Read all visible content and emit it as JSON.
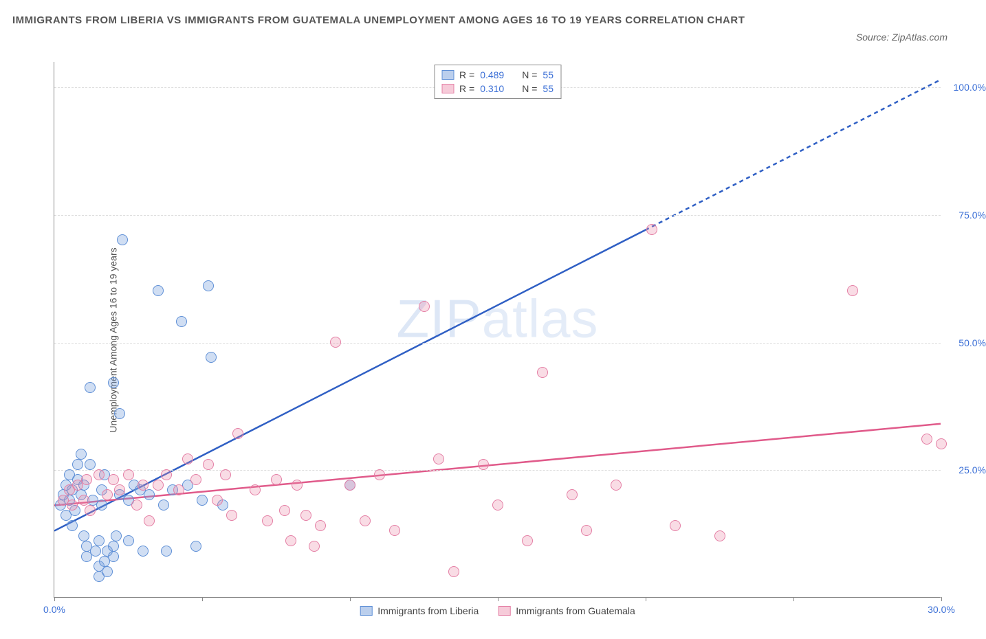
{
  "title": "IMMIGRANTS FROM LIBERIA VS IMMIGRANTS FROM GUATEMALA UNEMPLOYMENT AMONG AGES 16 TO 19 YEARS CORRELATION CHART",
  "source": "Source: ZipAtlas.com",
  "watermark_main": "ZIP",
  "watermark_sub": "atlas",
  "chart": {
    "type": "scatter",
    "ylabel": "Unemployment Among Ages 16 to 19 years",
    "xlim": [
      0,
      30
    ],
    "ylim": [
      0,
      105
    ],
    "xticks": [
      0,
      5,
      10,
      15,
      20,
      25,
      30
    ],
    "xtick_labels": {
      "0": "0.0%",
      "30": "30.0%"
    },
    "yticks": [
      25,
      50,
      75,
      100
    ],
    "ytick_labels": [
      "25.0%",
      "50.0%",
      "75.0%",
      "100.0%"
    ],
    "grid_color": "#dddddd",
    "background_color": "#ffffff",
    "legend_top": [
      {
        "swatch": "a",
        "r_label": "R =",
        "r": "0.489",
        "n_label": "N =",
        "n": "55"
      },
      {
        "swatch": "b",
        "r_label": "R =",
        "r": "0.310",
        "n_label": "N =",
        "n": "55"
      }
    ],
    "legend_bottom": [
      {
        "swatch": "a",
        "label": "Immigrants from Liberia"
      },
      {
        "swatch": "b",
        "label": "Immigrants from Guatemala"
      }
    ],
    "series": [
      {
        "name": "Immigrants from Liberia",
        "key": "a",
        "color_fill": "rgba(120,160,220,0.35)",
        "color_stroke": "#5e8fd6",
        "trend": {
          "x1": 0,
          "y1": 13,
          "x2": 20,
          "y2": 72,
          "x3": 30,
          "y3": 101.5,
          "dashed_after_x": 20,
          "color": "#2f5fc4",
          "width": 2.5
        },
        "points": [
          [
            0.2,
            18
          ],
          [
            0.3,
            20
          ],
          [
            0.4,
            22
          ],
          [
            0.4,
            16
          ],
          [
            0.5,
            19
          ],
          [
            0.5,
            24
          ],
          [
            0.6,
            21
          ],
          [
            0.6,
            14
          ],
          [
            0.7,
            17
          ],
          [
            0.8,
            23
          ],
          [
            0.8,
            26
          ],
          [
            0.9,
            28
          ],
          [
            0.9,
            20
          ],
          [
            1.0,
            22
          ],
          [
            1.0,
            12
          ],
          [
            1.1,
            10
          ],
          [
            1.1,
            8
          ],
          [
            1.2,
            26
          ],
          [
            1.2,
            41
          ],
          [
            1.3,
            19
          ],
          [
            1.4,
            9
          ],
          [
            1.5,
            11
          ],
          [
            1.5,
            6
          ],
          [
            1.5,
            4
          ],
          [
            1.6,
            21
          ],
          [
            1.6,
            18
          ],
          [
            1.7,
            24
          ],
          [
            1.7,
            7
          ],
          [
            1.8,
            9
          ],
          [
            1.8,
            5
          ],
          [
            2.0,
            42
          ],
          [
            2.0,
            10
          ],
          [
            2.0,
            8
          ],
          [
            2.1,
            12
          ],
          [
            2.2,
            20
          ],
          [
            2.2,
            36
          ],
          [
            2.3,
            70
          ],
          [
            2.5,
            11
          ],
          [
            2.5,
            19
          ],
          [
            2.7,
            22
          ],
          [
            2.9,
            21
          ],
          [
            3.0,
            9
          ],
          [
            3.2,
            20
          ],
          [
            3.5,
            60
          ],
          [
            3.7,
            18
          ],
          [
            3.8,
            9
          ],
          [
            4.0,
            21
          ],
          [
            4.3,
            54
          ],
          [
            4.5,
            22
          ],
          [
            4.8,
            10
          ],
          [
            5.0,
            19
          ],
          [
            5.2,
            61
          ],
          [
            5.3,
            47
          ],
          [
            5.7,
            18
          ],
          [
            10.0,
            22
          ]
        ]
      },
      {
        "name": "Immigrants from Guatemala",
        "key": "b",
        "color_fill": "rgba(235,140,170,0.30)",
        "color_stroke": "#e47fa5",
        "trend": {
          "x1": 0,
          "y1": 18,
          "x2": 30,
          "y2": 34,
          "color": "#e05a8a",
          "width": 2.5
        },
        "points": [
          [
            0.3,
            19
          ],
          [
            0.5,
            21
          ],
          [
            0.6,
            18
          ],
          [
            0.8,
            22
          ],
          [
            1.0,
            19
          ],
          [
            1.1,
            23
          ],
          [
            1.2,
            17
          ],
          [
            1.5,
            24
          ],
          [
            1.8,
            20
          ],
          [
            2.0,
            23
          ],
          [
            2.2,
            21
          ],
          [
            2.5,
            24
          ],
          [
            2.8,
            18
          ],
          [
            3.0,
            22
          ],
          [
            3.2,
            15
          ],
          [
            3.5,
            22
          ],
          [
            3.8,
            24
          ],
          [
            4.2,
            21
          ],
          [
            4.5,
            27
          ],
          [
            4.8,
            23
          ],
          [
            5.2,
            26
          ],
          [
            5.5,
            19
          ],
          [
            5.8,
            24
          ],
          [
            6.0,
            16
          ],
          [
            6.2,
            32
          ],
          [
            6.8,
            21
          ],
          [
            7.2,
            15
          ],
          [
            7.5,
            23
          ],
          [
            7.8,
            17
          ],
          [
            8.0,
            11
          ],
          [
            8.2,
            22
          ],
          [
            8.5,
            16
          ],
          [
            8.8,
            10
          ],
          [
            9.0,
            14
          ],
          [
            9.5,
            50
          ],
          [
            10.0,
            22
          ],
          [
            10.5,
            15
          ],
          [
            11.0,
            24
          ],
          [
            11.5,
            13
          ],
          [
            12.5,
            57
          ],
          [
            13.0,
            27
          ],
          [
            13.5,
            5
          ],
          [
            14.5,
            26
          ],
          [
            15.0,
            18
          ],
          [
            16.0,
            11
          ],
          [
            16.5,
            44
          ],
          [
            17.5,
            20
          ],
          [
            18.0,
            13
          ],
          [
            19.0,
            22
          ],
          [
            20.2,
            72
          ],
          [
            21.0,
            14
          ],
          [
            22.5,
            12
          ],
          [
            27.0,
            60
          ],
          [
            29.5,
            31
          ],
          [
            30.0,
            30
          ]
        ]
      }
    ]
  }
}
